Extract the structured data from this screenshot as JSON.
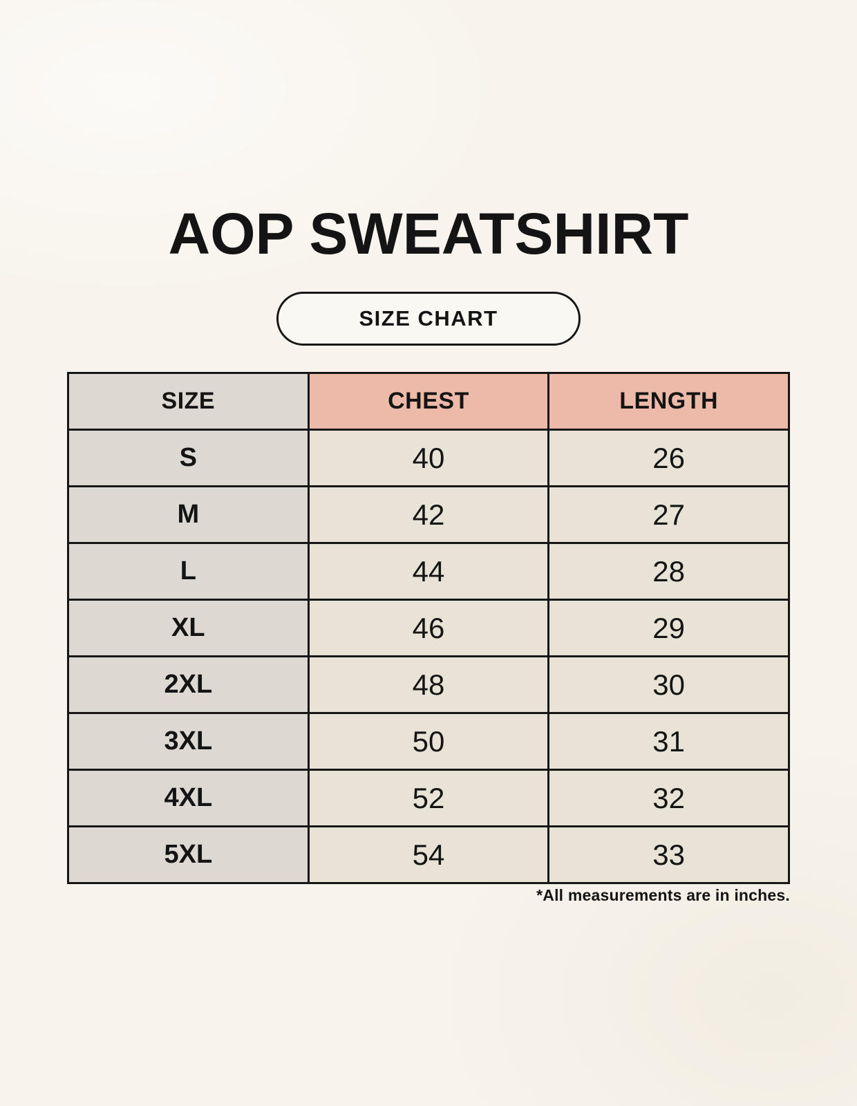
{
  "header": {
    "title": "AOP SWEATSHIRT",
    "badge_label": "SIZE CHART"
  },
  "chart_data": {
    "type": "table",
    "title": "AOP SWEATSHIRT",
    "subtitle": "SIZE CHART",
    "columns": [
      "SIZE",
      "CHEST",
      "LENGTH"
    ],
    "rows": [
      [
        "S",
        40,
        26
      ],
      [
        "M",
        42,
        27
      ],
      [
        "L",
        44,
        28
      ],
      [
        "XL",
        46,
        29
      ],
      [
        "2XL",
        48,
        30
      ],
      [
        "3XL",
        50,
        31
      ],
      [
        "4XL",
        52,
        32
      ],
      [
        "5XL",
        54,
        33
      ]
    ],
    "units": "inches"
  },
  "footnote": "*All measurements are in inches.",
  "colors": {
    "page_bg": "#F8F4ED",
    "size_column_bg": "#DED8D2",
    "accent_header_bg": "#EDBAAA",
    "value_cell_bg": "#E9E3D7",
    "border": "#161616",
    "text": "#141414"
  }
}
